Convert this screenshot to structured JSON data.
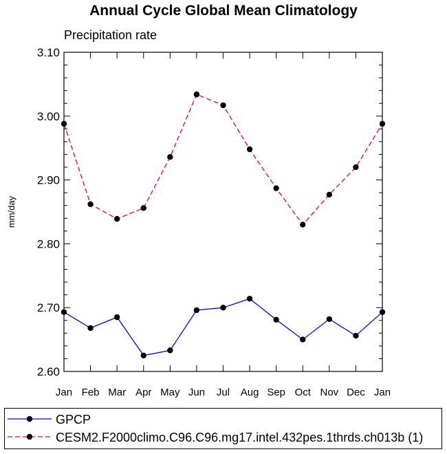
{
  "chart_data": {
    "type": "line",
    "title": "Annual Cycle Global Mean Climatology",
    "subtitle": "Precipitation rate",
    "xlabel": "",
    "ylabel": "mm/day",
    "ylim": [
      2.6,
      3.1
    ],
    "yticks": [
      "2.60",
      "2.70",
      "2.80",
      "2.90",
      "3.00",
      "3.10"
    ],
    "categories": [
      "Jan",
      "Feb",
      "Mar",
      "Apr",
      "May",
      "Jun",
      "Jul",
      "Aug",
      "Sep",
      "Oct",
      "Nov",
      "Dec",
      "Jan"
    ],
    "series": [
      {
        "name": "GPCP",
        "color": "#0000ff",
        "style": "solid",
        "values": [
          2.693,
          2.668,
          2.685,
          2.625,
          2.633,
          2.696,
          2.7,
          2.714,
          2.681,
          2.65,
          2.682,
          2.656,
          2.693
        ]
      },
      {
        "name": "CESM2.F2000climo.C96.C96.mg17.intel.432pes.1thrds.ch013b (1)",
        "color": "#ff0000",
        "style": "dashed",
        "values": [
          2.988,
          2.862,
          2.839,
          2.856,
          2.936,
          3.034,
          3.017,
          2.948,
          2.887,
          2.83,
          2.877,
          2.92,
          2.988
        ]
      }
    ],
    "legend_position": "bottom"
  }
}
